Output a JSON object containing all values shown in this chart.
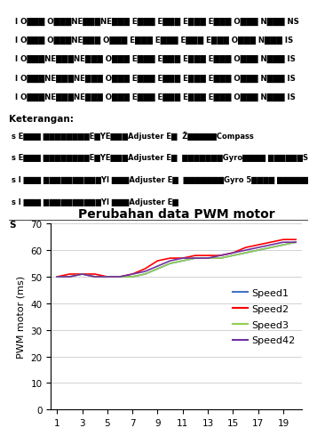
{
  "title": "Perubahan data PWM motor",
  "ylabel": "PWM motor (ms)",
  "xlim": [
    0.5,
    20.5
  ],
  "ylim": [
    0,
    70
  ],
  "yticks": [
    0,
    10,
    20,
    30,
    40,
    50,
    60,
    70
  ],
  "xticks": [
    1,
    3,
    5,
    7,
    9,
    11,
    13,
    15,
    17,
    19
  ],
  "x": [
    1,
    2,
    3,
    4,
    5,
    6,
    7,
    8,
    9,
    10,
    11,
    12,
    13,
    14,
    15,
    16,
    17,
    18,
    19,
    20
  ],
  "speed1": [
    50,
    50,
    51,
    50,
    50,
    50,
    50,
    51,
    53,
    55,
    56,
    57,
    57,
    57,
    58,
    59,
    60,
    61,
    62,
    63
  ],
  "speed2": [
    50,
    51,
    51,
    51,
    50,
    50,
    51,
    53,
    56,
    57,
    57,
    58,
    58,
    58,
    59,
    61,
    62,
    63,
    64,
    64
  ],
  "speed3": [
    50,
    50,
    51,
    50,
    50,
    50,
    50,
    51,
    53,
    55,
    56,
    57,
    57,
    57,
    58,
    59,
    60,
    61,
    62,
    63
  ],
  "speed42": [
    50,
    50,
    51,
    50,
    50,
    50,
    51,
    52,
    54,
    56,
    57,
    57,
    57,
    58,
    59,
    60,
    61,
    62,
    63,
    63
  ],
  "color_speed1": "#4472C4",
  "color_speed2": "#FF0000",
  "color_speed3": "#92D050",
  "color_speed42": "#7030A0",
  "legend_labels": [
    "Speed1",
    "Speed2",
    "Speed3",
    "Speed42"
  ],
  "title_fontsize": 10,
  "axis_fontsize": 8,
  "tick_fontsize": 7.5,
  "legend_fontsize": 8,
  "garbled_lines": [
    "I O███ O███NE███NE███ E███ E███ E███ E███ O███ N███ NS",
    "I O███ O███NE███ O███ E███ E███ E███ E███ O███ N███ IS",
    "I O███NE███NE███ O███ E███ E███ E███ E███ O███ N███ IS",
    "I O███NE███NE███ O███ E███ E███ E███ E███ O███ N███ IS",
    "I O███NE███NE███ O███ E███ E███ E███ E███ O███ N███ IS"
  ],
  "keterangan_label": "Keterangan:",
  "keterangan_lines": [
    "s E███ ████████E█YE███Adjuster E█  Ž█████Compass",
    "s E███ ████████E█YE███Adjuster E█  ███████Gyro████ ██████S",
    "s I ███ ██████████YI ███Adjuster E█  ███████Gyro 5████ ██████S",
    "s I ███ ██████████YI ███Adjuster E█"
  ],
  "bottom_s": "S"
}
